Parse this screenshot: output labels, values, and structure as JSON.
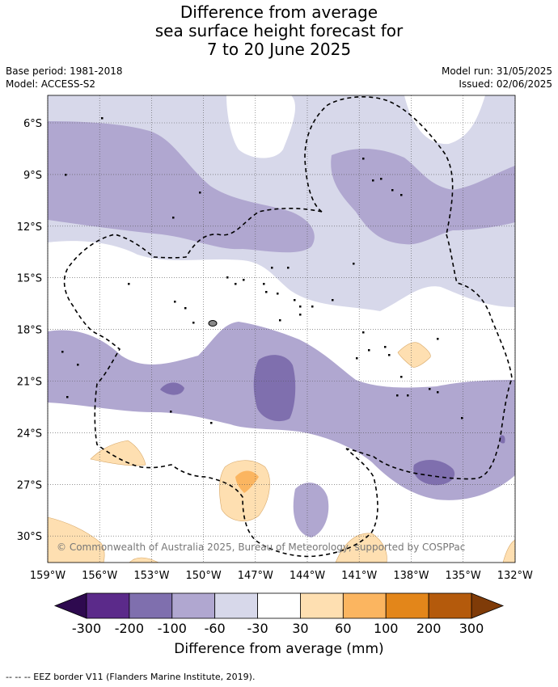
{
  "title_lines": [
    "Difference from average",
    "sea surface height forecast for",
    "7 to 20 June 2025"
  ],
  "base_period": "Base period: 1981-2018",
  "model": "Model: ACCESS-S2",
  "model_run": "Model run: 31/05/2025",
  "issued": "Issued: 02/06/2025",
  "copyright": "© Commonwealth of Australia 2025, Bureau of Meteorology, supported by COSPPac",
  "lat_labels": [
    "6°S",
    "9°S",
    "12°S",
    "15°S",
    "18°S",
    "21°S",
    "24°S",
    "27°S",
    "30°S"
  ],
  "lon_labels": [
    "159°W",
    "156°W",
    "153°W",
    "150°W",
    "147°W",
    "144°W",
    "141°W",
    "138°W",
    "135°W",
    "132°W"
  ],
  "colorbar": {
    "ticks": [
      "-300",
      "-200",
      "-100",
      "-60",
      "-30",
      "30",
      "60",
      "100",
      "200",
      "300"
    ],
    "colors": [
      "#5b2a8a",
      "#7f6fae",
      "#b0a7d0",
      "#d7d8ea",
      "#ffffff",
      "#fedfb1",
      "#fbb560",
      "#e3861a",
      "#b45a0c"
    ],
    "under_color": "#2e0a4f",
    "over_color": "#7f3b08",
    "label": "Difference from average (mm)"
  },
  "footnote": "--  --  -- EEZ border V11 (Flanders Marine Institute, 2019)."
}
